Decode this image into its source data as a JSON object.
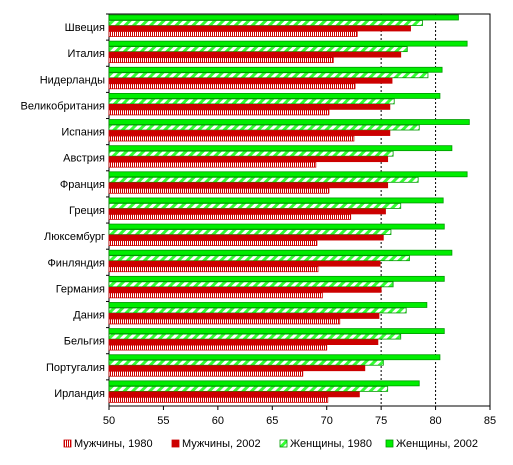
{
  "chart_data": {
    "type": "bar",
    "orientation": "horizontal",
    "title": "",
    "xlabel": "",
    "ylabel": "",
    "xlim": [
      50,
      85
    ],
    "xticks": [
      50,
      55,
      60,
      65,
      70,
      75,
      80,
      85
    ],
    "reference_lines": [
      75,
      80
    ],
    "categories": [
      "Швеция",
      "Италия",
      "Нидерланды",
      "Великобритания",
      "Испания",
      "Австрия",
      "Франция",
      "Греция",
      "Люксембург",
      "Финляндия",
      "Германия",
      "Дания",
      "Бельгия",
      "Португалия",
      "Ирландия"
    ],
    "series": [
      {
        "name": "Мужчины, 1980",
        "fill": "#ffffff",
        "pattern": "vertical-hatch",
        "color": "#cc0000",
        "values": [
          72.8,
          70.6,
          72.6,
          70.2,
          72.5,
          69.0,
          70.2,
          72.2,
          69.1,
          69.2,
          69.6,
          71.2,
          70.0,
          67.8,
          70.1
        ]
      },
      {
        "name": "Мужчины, 2002",
        "fill": "#cc0000",
        "pattern": "solid",
        "color": "#cc0000",
        "values": [
          77.7,
          76.8,
          76.0,
          75.8,
          75.8,
          75.6,
          75.6,
          75.4,
          75.2,
          74.9,
          75.0,
          74.8,
          74.7,
          73.5,
          73.0
        ]
      },
      {
        "name": "Женщины, 1980",
        "fill": "#33ff33",
        "pattern": "diagonal-hatch",
        "color": "#009900",
        "values": [
          78.8,
          77.4,
          79.3,
          76.2,
          78.5,
          76.1,
          78.4,
          76.8,
          75.9,
          77.6,
          76.1,
          77.3,
          76.8,
          75.2,
          75.6
        ]
      },
      {
        "name": "Женщины, 2002",
        "fill": "#00ee00",
        "pattern": "solid",
        "color": "#009900",
        "values": [
          82.1,
          82.9,
          80.6,
          80.4,
          83.1,
          81.5,
          82.9,
          80.7,
          80.8,
          81.5,
          80.8,
          79.2,
          80.8,
          80.4,
          78.5
        ]
      }
    ],
    "legend_position": "bottom",
    "grid": false
  }
}
